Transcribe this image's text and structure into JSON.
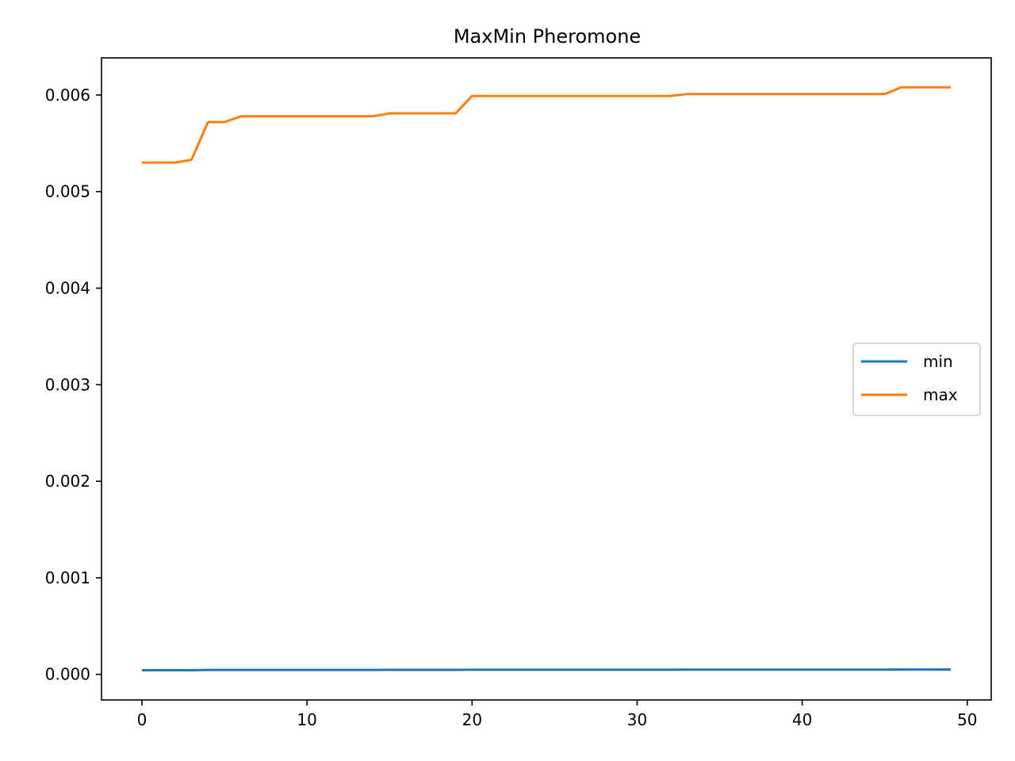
{
  "chart_data": {
    "type": "line",
    "title": "MaxMin Pheromone",
    "xlabel": "",
    "ylabel": "",
    "xlim": [
      -2.45,
      51.45
    ],
    "ylim": [
      -0.000265,
      0.006385
    ],
    "xticks": [
      0,
      10,
      20,
      30,
      40,
      50
    ],
    "xtick_labels": [
      "0",
      "10",
      "20",
      "30",
      "40",
      "50"
    ],
    "yticks": [
      0.0,
      0.001,
      0.002,
      0.003,
      0.004,
      0.005,
      0.006
    ],
    "ytick_labels": [
      "0.000",
      "0.001",
      "0.002",
      "0.003",
      "0.004",
      "0.005",
      "0.006"
    ],
    "grid": false,
    "legend_position": "center right",
    "x": [
      0,
      1,
      2,
      3,
      4,
      5,
      6,
      7,
      8,
      9,
      10,
      11,
      12,
      13,
      14,
      15,
      16,
      17,
      18,
      19,
      20,
      21,
      22,
      23,
      24,
      25,
      26,
      27,
      28,
      29,
      30,
      31,
      32,
      33,
      34,
      35,
      36,
      37,
      38,
      39,
      40,
      41,
      42,
      43,
      44,
      45,
      46,
      47,
      48,
      49
    ],
    "series": [
      {
        "name": "min",
        "color": "#1f77b4",
        "values": [
          4.3e-05,
          4.3e-05,
          4.3e-05,
          4.3e-05,
          4.6e-05,
          4.6e-05,
          4.6e-05,
          4.6e-05,
          4.6e-05,
          4.6e-05,
          4.6e-05,
          4.6e-05,
          4.6e-05,
          4.6e-05,
          4.6e-05,
          4.7e-05,
          4.7e-05,
          4.7e-05,
          4.7e-05,
          4.7e-05,
          4.8e-05,
          4.8e-05,
          4.8e-05,
          4.8e-05,
          4.8e-05,
          4.8e-05,
          4.8e-05,
          4.8e-05,
          4.8e-05,
          4.8e-05,
          4.8e-05,
          4.8e-05,
          4.8e-05,
          4.9e-05,
          4.9e-05,
          4.9e-05,
          4.9e-05,
          4.9e-05,
          4.9e-05,
          4.9e-05,
          4.9e-05,
          4.9e-05,
          4.9e-05,
          4.9e-05,
          4.9e-05,
          4.9e-05,
          5e-05,
          5e-05,
          5e-05,
          5e-05
        ]
      },
      {
        "name": "max",
        "color": "#ff7f0e",
        "values": [
          0.0053,
          0.0053,
          0.0053,
          0.00533,
          0.00572,
          0.00572,
          0.00578,
          0.00578,
          0.00578,
          0.00578,
          0.00578,
          0.00578,
          0.00578,
          0.00578,
          0.00578,
          0.00581,
          0.00581,
          0.00581,
          0.00581,
          0.00581,
          0.00599,
          0.00599,
          0.00599,
          0.00599,
          0.00599,
          0.00599,
          0.00599,
          0.00599,
          0.00599,
          0.00599,
          0.00599,
          0.00599,
          0.00599,
          0.00601,
          0.00601,
          0.00601,
          0.00601,
          0.00601,
          0.00601,
          0.00601,
          0.00601,
          0.00601,
          0.00601,
          0.00601,
          0.00601,
          0.00601,
          0.00608,
          0.00608,
          0.00608,
          0.00608
        ]
      }
    ]
  }
}
